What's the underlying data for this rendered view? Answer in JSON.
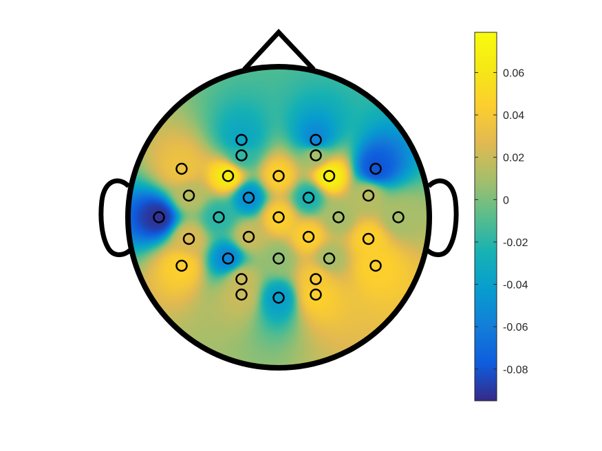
{
  "chart_data": {
    "type": "heatmap",
    "subtype": "eeg-scalp-topography",
    "colormap": "parula",
    "clim": [
      -0.095,
      0.079
    ],
    "colorbar": {
      "ticks": [
        0.06,
        0.04,
        0.02,
        0,
        -0.02,
        -0.04,
        -0.06,
        -0.08
      ],
      "tick_labels": [
        "0.06",
        "0.04",
        "0.02",
        "0",
        "-0.02",
        "-0.04",
        "-0.06",
        "-0.08"
      ]
    },
    "electrodes": [
      {
        "x": -0.36,
        "y": 0.75,
        "value": -0.035
      },
      {
        "x": 0.36,
        "y": 0.75,
        "value": -0.055
      },
      {
        "x": -0.36,
        "y": 0.6,
        "value": -0.018
      },
      {
        "x": 0.36,
        "y": 0.6,
        "value": 0.01
      },
      {
        "x": -0.94,
        "y": 0.47,
        "value": 0.035
      },
      {
        "x": -0.49,
        "y": 0.4,
        "value": 0.065
      },
      {
        "x": 0.0,
        "y": 0.4,
        "value": 0.045
      },
      {
        "x": 0.49,
        "y": 0.4,
        "value": 0.07
      },
      {
        "x": 0.94,
        "y": 0.47,
        "value": -0.08
      },
      {
        "x": -0.87,
        "y": 0.21,
        "value": 0.015
      },
      {
        "x": -0.29,
        "y": 0.19,
        "value": -0.05
      },
      {
        "x": 0.29,
        "y": 0.19,
        "value": -0.025
      },
      {
        "x": 0.87,
        "y": 0.21,
        "value": 0.015
      },
      {
        "x": -1.16,
        "y": 0.0,
        "value": -0.092
      },
      {
        "x": -0.58,
        "y": 0.0,
        "value": -0.02
      },
      {
        "x": 0.0,
        "y": 0.0,
        "value": 0.045
      },
      {
        "x": 0.58,
        "y": 0.0,
        "value": 0.01
      },
      {
        "x": 1.16,
        "y": 0.0,
        "value": 0.01
      },
      {
        "x": -0.87,
        "y": -0.21,
        "value": 0.025
      },
      {
        "x": -0.29,
        "y": -0.19,
        "value": 0.02
      },
      {
        "x": 0.29,
        "y": -0.19,
        "value": 0.045
      },
      {
        "x": 0.87,
        "y": -0.21,
        "value": 0.045
      },
      {
        "x": -0.94,
        "y": -0.47,
        "value": 0.045
      },
      {
        "x": -0.49,
        "y": -0.4,
        "value": -0.055
      },
      {
        "x": 0.0,
        "y": -0.4,
        "value": 0.005
      },
      {
        "x": 0.49,
        "y": -0.4,
        "value": 0.01
      },
      {
        "x": 0.94,
        "y": -0.47,
        "value": 0.045
      },
      {
        "x": -0.36,
        "y": -0.6,
        "value": 0.02
      },
      {
        "x": 0.36,
        "y": -0.6,
        "value": 0.04
      },
      {
        "x": -0.36,
        "y": -0.75,
        "value": 0.02
      },
      {
        "x": 0.0,
        "y": -0.78,
        "value": -0.04
      },
      {
        "x": 0.36,
        "y": -0.75,
        "value": 0.045
      }
    ]
  }
}
